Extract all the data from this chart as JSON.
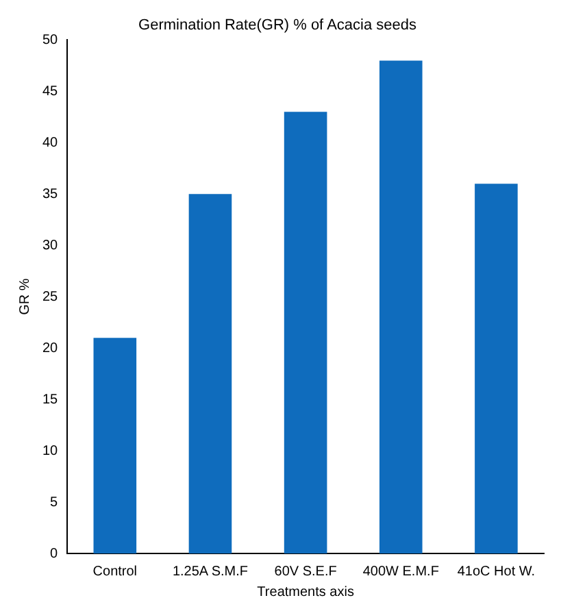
{
  "chart_data": {
    "type": "bar",
    "title": "Germination Rate(GR) % of Acacia seeds",
    "xlabel": "Treatments axis",
    "ylabel": "GR %",
    "categories": [
      "Control",
      "1.25A S.M.F",
      "60V S.E.F",
      "400W E.M.F",
      "41oC Hot W."
    ],
    "values": [
      21,
      35,
      43,
      48,
      36
    ],
    "color": "#0f6cbd",
    "ylim": [
      0,
      50
    ],
    "yticks": [
      0,
      5,
      10,
      15,
      20,
      25,
      30,
      35,
      40,
      45,
      50
    ],
    "grid": false
  }
}
